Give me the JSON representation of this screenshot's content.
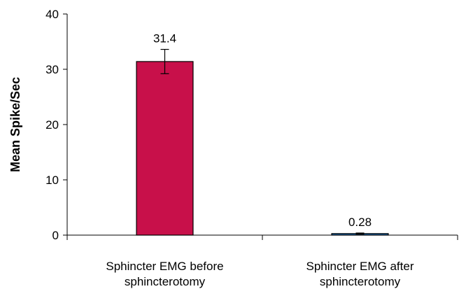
{
  "chart_data": {
    "type": "bar",
    "title": "",
    "xlabel": "",
    "ylabel": "Mean Spike/Sec",
    "ylim": [
      0,
      40
    ],
    "yticks": [
      0,
      10,
      20,
      30,
      40
    ],
    "grid": false,
    "legend": "none",
    "categories": [
      [
        "Sphincter EMG before",
        "sphincterotomy"
      ],
      [
        "Sphincter EMG after",
        "sphincterotomy"
      ]
    ],
    "values": [
      31.4,
      0.28
    ],
    "data_labels": [
      "31.4",
      "0.28"
    ],
    "error": [
      2.2,
      0.1
    ],
    "colors": [
      "#c8104a",
      "#1f6fb5"
    ]
  }
}
